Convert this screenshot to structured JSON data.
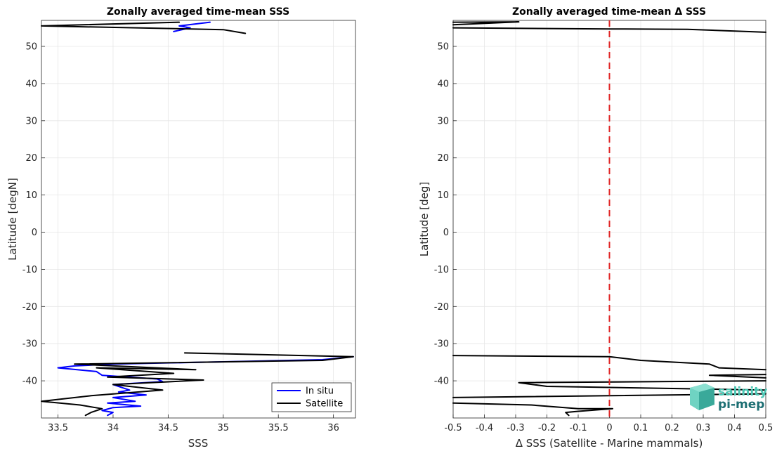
{
  "chart_data": [
    {
      "type": "line",
      "title": "Zonally averaged time-mean SSS",
      "xlabel": "SSS",
      "ylabel": "Latitude [degN]",
      "xlim": [
        33.35,
        36.2
      ],
      "ylim": [
        -50,
        57
      ],
      "xticks": [
        "33.5",
        "34",
        "34.5",
        "35",
        "35.5",
        "36"
      ],
      "xtick_values": [
        33.5,
        34,
        34.5,
        35,
        35.5,
        36
      ],
      "yticks": [
        "50",
        "40",
        "30",
        "20",
        "10",
        "0",
        "-10",
        "-20",
        "-30",
        "-40"
      ],
      "ytick_values": [
        50,
        40,
        30,
        20,
        10,
        0,
        -10,
        -20,
        -30,
        -40
      ],
      "grid": true,
      "legend": {
        "position": "bottom-right"
      },
      "series": [
        {
          "name": "In situ",
          "color": "#0000ff",
          "segments": [
            [
              [
                34.88,
                56.5
              ],
              [
                34.6,
                55.5
              ],
              [
                34.7,
                55.0
              ],
              [
                34.55,
                54.0
              ]
            ],
            [
              [
                36.18,
                -33.5
              ],
              [
                35.9,
                -34.3
              ],
              [
                34.0,
                -35.5
              ],
              [
                33.65,
                -36.0
              ],
              [
                33.5,
                -36.5
              ],
              [
                33.85,
                -37.5
              ],
              [
                33.9,
                -38.5
              ],
              [
                34.4,
                -39.5
              ],
              [
                34.45,
                -40.2
              ],
              [
                34.0,
                -41.0
              ],
              [
                34.15,
                -42.5
              ],
              [
                34.05,
                -43.0
              ],
              [
                34.3,
                -43.8
              ],
              [
                34.0,
                -44.5
              ],
              [
                34.2,
                -45.5
              ],
              [
                33.95,
                -46.0
              ],
              [
                34.25,
                -46.8
              ],
              [
                34.0,
                -47.2
              ],
              [
                33.9,
                -48.0
              ],
              [
                34.0,
                -48.5
              ],
              [
                33.95,
                -49.3
              ]
            ]
          ]
        },
        {
          "name": "Satellite",
          "color": "#000000",
          "segments": [
            [
              [
                34.6,
                56.5
              ],
              [
                33.35,
                55.5
              ],
              [
                35.0,
                54.5
              ],
              [
                35.2,
                53.5
              ]
            ],
            [
              [
                34.65,
                -32.5
              ],
              [
                36.18,
                -33.5
              ],
              [
                35.9,
                -34.5
              ],
              [
                33.65,
                -35.5
              ],
              [
                34.75,
                -37.0
              ],
              [
                33.85,
                -36.5
              ],
              [
                34.55,
                -38.0
              ],
              [
                33.95,
                -39.0
              ],
              [
                34.82,
                -39.8
              ],
              [
                34.0,
                -41.0
              ],
              [
                34.45,
                -42.5
              ],
              [
                33.8,
                -44.0
              ],
              [
                33.35,
                -45.5
              ],
              [
                33.7,
                -46.5
              ],
              [
                33.9,
                -47.5
              ],
              [
                33.8,
                -48.5
              ],
              [
                33.75,
                -49.3
              ]
            ]
          ]
        }
      ]
    },
    {
      "type": "line",
      "title": "Zonally averaged time-mean Δ SSS",
      "xlabel": "Δ SSS (Satellite - Marine mammals)",
      "ylabel": "Latitude [deg]",
      "xlim": [
        -0.5,
        0.5
      ],
      "ylim": [
        -50,
        57
      ],
      "xticks": [
        "-0.5",
        "-0.4",
        "-0.3",
        "-0.2",
        "-0.1",
        "0",
        "0.1",
        "0.2",
        "0.3",
        "0.4",
        "0.5"
      ],
      "xtick_values": [
        -0.5,
        -0.4,
        -0.3,
        -0.2,
        -0.1,
        0,
        0.1,
        0.2,
        0.3,
        0.4,
        0.5
      ],
      "yticks": [
        "50",
        "40",
        "30",
        "20",
        "10",
        "0",
        "-10",
        "-20",
        "-30",
        "-40"
      ],
      "ytick_values": [
        50,
        40,
        30,
        20,
        10,
        0,
        -10,
        -20,
        -30,
        -40
      ],
      "grid": true,
      "reference_line": {
        "x": 0,
        "color": "#e02020",
        "style": "dashed"
      },
      "series": [
        {
          "color": "#000000",
          "segments": [
            [
              [
                -0.5,
                56.5
              ],
              [
                -0.29,
                56.6
              ],
              [
                -0.5,
                55.8
              ]
            ],
            [
              [
                -0.5,
                55.0
              ],
              [
                0.0,
                54.7
              ],
              [
                0.25,
                54.6
              ],
              [
                0.5,
                53.8
              ]
            ],
            [
              [
                -0.5,
                -33.2
              ],
              [
                0.0,
                -33.5
              ],
              [
                0.1,
                -34.5
              ],
              [
                0.32,
                -35.5
              ],
              [
                0.35,
                -36.5
              ],
              [
                0.5,
                -37.0
              ]
            ],
            [
              [
                0.5,
                -38.3
              ],
              [
                0.32,
                -38.5
              ],
              [
                0.5,
                -39.2
              ]
            ],
            [
              [
                0.5,
                -40.0
              ],
              [
                -0.29,
                -40.5
              ],
              [
                -0.2,
                -41.5
              ],
              [
                0.5,
                -42.5
              ]
            ],
            [
              [
                0.5,
                -43.5
              ],
              [
                -0.5,
                -44.5
              ]
            ],
            [
              [
                -0.5,
                -46.0
              ],
              [
                -0.25,
                -46.5
              ],
              [
                -0.1,
                -47.5
              ],
              [
                0.01,
                -47.5
              ],
              [
                -0.1,
                -48.2
              ],
              [
                -0.14,
                -48.5
              ],
              [
                -0.13,
                -49.3
              ]
            ]
          ]
        }
      ]
    }
  ],
  "legend_labels": [
    "In situ",
    "Satellite"
  ],
  "logo": {
    "line1": "salinity",
    "line2": "pi-mep"
  }
}
